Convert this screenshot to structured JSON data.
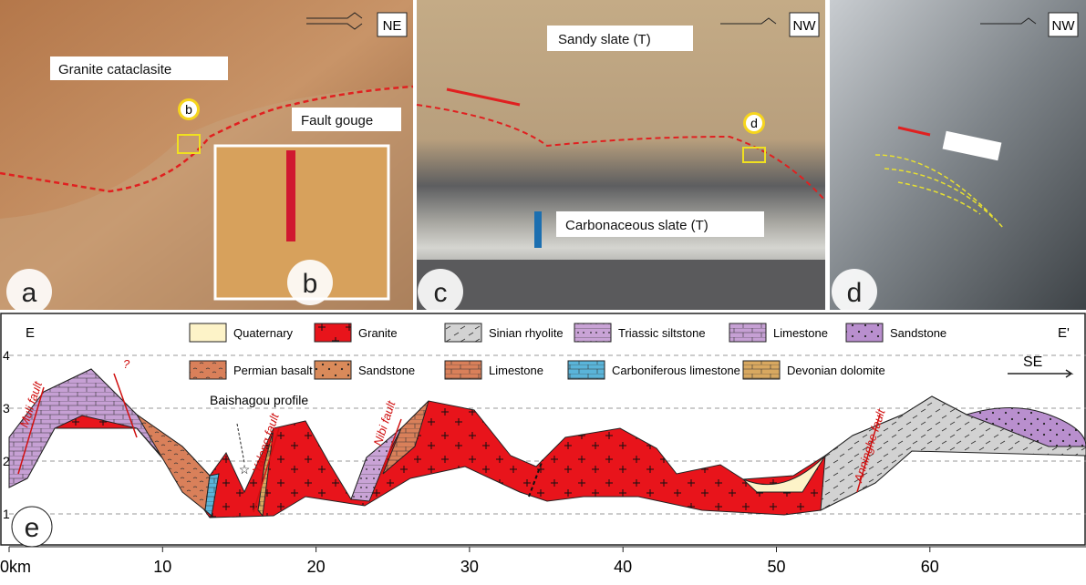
{
  "panels": {
    "a": {
      "letter": "a",
      "orientation": "NE",
      "labels": [
        "Granite cataclasite",
        "Fault gouge"
      ],
      "marker": "b",
      "inset_letter": "b"
    },
    "c": {
      "letter": "c",
      "orientation": "NW",
      "labels": [
        "Sandy slate (T)",
        "Carbonaceous slate (T)"
      ],
      "marker": "d"
    },
    "d": {
      "letter": "d",
      "orientation": "NW"
    },
    "e": {
      "letter": "e",
      "left_end": "E",
      "right_end": "E'",
      "direction": "SE",
      "legend": [
        "Quaternary",
        "Granite",
        "Sinian rhyolite",
        "Triassic siltstone",
        "Limestone",
        "Sandstone",
        "Permian basalt",
        "Sandstone",
        "Limestone",
        "Carboniferous limestone",
        "Devonian dolomite"
      ],
      "faults": [
        "Muli fault",
        "Yalong fault",
        "Nibi fault",
        "Anninghe fault"
      ],
      "query": "?",
      "profile": "Baishagou profile",
      "x_ticks": [
        "0km",
        "10",
        "20",
        "30",
        "40",
        "50",
        "60"
      ],
      "y_ticks": [
        "1",
        "2",
        "3",
        "4"
      ]
    }
  }
}
